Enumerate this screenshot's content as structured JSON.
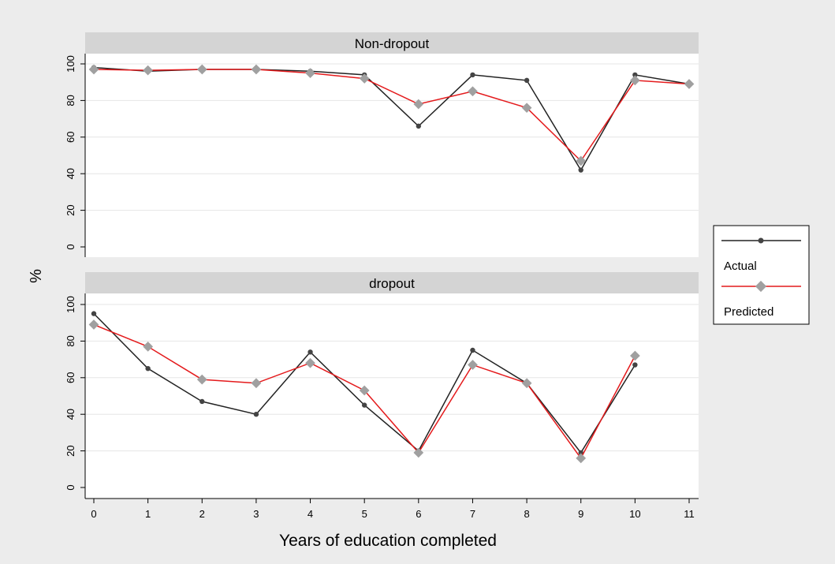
{
  "chart_data": {
    "type": "line",
    "ylabel": "%",
    "xlabel": "Years of education completed",
    "x": [
      0,
      1,
      2,
      3,
      4,
      5,
      6,
      7,
      8,
      9,
      10,
      11
    ],
    "x_ticks": [
      "0",
      "1",
      "2",
      "3",
      "4",
      "5",
      "6",
      "7",
      "8",
      "9",
      "10",
      "11"
    ],
    "y_ticks": [
      "0",
      "20",
      "40",
      "60",
      "80",
      "100"
    ],
    "ylim": [
      0,
      100
    ],
    "grid": true,
    "legend": {
      "placement": "right",
      "entries": [
        "Actual",
        "Predicted"
      ]
    },
    "colors": {
      "Actual": "#222222",
      "Predicted": "#e41a1c",
      "actual_marker": "#444444",
      "predicted_marker": "#a0a0a0",
      "panel_header": "#d4d4d4",
      "panel_background": "#ffffff",
      "gridline": "#e6e6e6",
      "figure_background": "#ececec"
    },
    "panels": [
      {
        "title": "Non-dropout",
        "series": [
          {
            "name": "Actual",
            "values": [
              98,
              96,
              97,
              97,
              96,
              94,
              66,
              94,
              91,
              42,
              94,
              89
            ]
          },
          {
            "name": "Predicted",
            "values": [
              97,
              96.5,
              97,
              97,
              95,
              92,
              78,
              85,
              76,
              47,
              91,
              89
            ]
          }
        ]
      },
      {
        "title": "dropout",
        "series": [
          {
            "name": "Actual",
            "values": [
              95,
              65,
              47,
              40,
              74,
              45,
              20,
              75,
              57,
              19,
              67,
              null
            ]
          },
          {
            "name": "Predicted",
            "values": [
              89,
              77,
              59,
              57,
              68,
              53,
              19,
              67,
              57,
              16,
              72,
              null
            ]
          }
        ]
      }
    ]
  }
}
